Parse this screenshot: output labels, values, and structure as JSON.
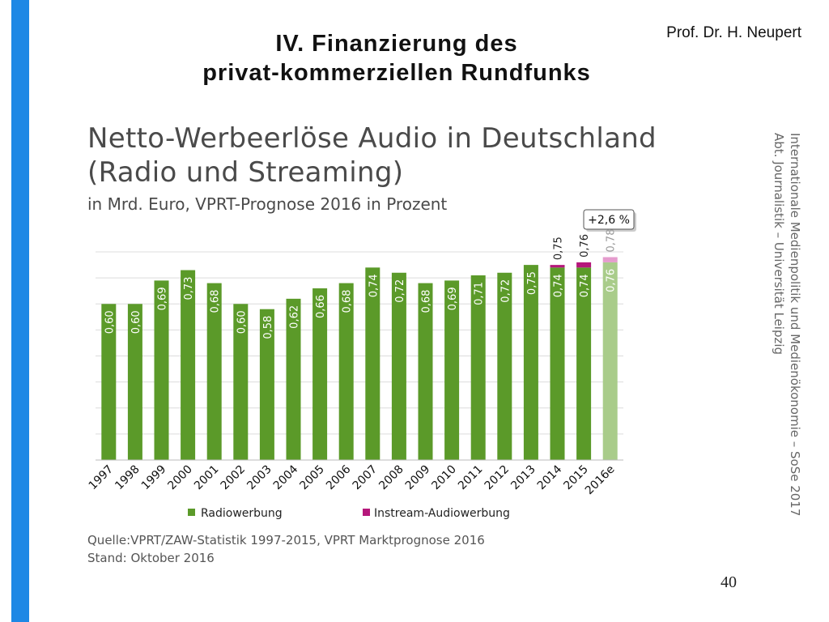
{
  "slide": {
    "title_line1": "IV. Finanzierung des",
    "title_line2": "privat-kommerziellen Rundfunks",
    "author": "Prof. Dr. H. Neupert",
    "side_line1": "Internationale Medienpolitik und Medienökonomie – SoSe 2017",
    "side_line2": "Abt. Journalistik – Universität Leipzig",
    "page_number": "40"
  },
  "colors": {
    "accent_bar": "#1e88e5",
    "radio": "#5b9a29",
    "radio_forecast": "#a9cc8a",
    "instream": "#b5177b",
    "instream_forecast": "#e59ccd"
  },
  "chart_data": {
    "type": "bar",
    "title_line1": "Netto-Werbeerlöse Audio in Deutschland",
    "title_line2": "(Radio und Streaming)",
    "subtitle": "in Mrd. Euro, VPRT-Prognose 2016 in Prozent",
    "categories": [
      "1997",
      "1998",
      "1999",
      "2000",
      "2001",
      "2002",
      "2003",
      "2004",
      "2005",
      "2006",
      "2007",
      "2008",
      "2009",
      "2010",
      "2011",
      "2012",
      "2013",
      "2014",
      "2015",
      "2016e"
    ],
    "series": [
      {
        "name": "Radiowerbung",
        "values": [
          0.6,
          0.6,
          0.69,
          0.73,
          0.68,
          0.6,
          0.58,
          0.62,
          0.66,
          0.68,
          0.74,
          0.72,
          0.68,
          0.69,
          0.71,
          0.72,
          0.75,
          0.74,
          0.74,
          0.76
        ]
      },
      {
        "name": "Instream-Audiowerbung",
        "values": [
          0,
          0,
          0,
          0,
          0,
          0,
          0,
          0,
          0,
          0,
          0,
          0,
          0,
          0,
          0,
          0,
          0,
          0.01,
          0.02,
          0.02
        ]
      }
    ],
    "value_labels": [
      "0,60",
      "0,60",
      "0,69",
      "0,73",
      "0,68",
      "0,60",
      "0,58",
      "0,62",
      "0,66",
      "0,68",
      "0,74",
      "0,72",
      "0,68",
      "0,69",
      "0,71",
      "0,72",
      "0,75",
      "0,74",
      "0,74",
      "0,76"
    ],
    "total_labels": [
      "",
      "",
      "",
      "",
      "",
      "",
      "",
      "",
      "",
      "",
      "",
      "",
      "",
      "",
      "",
      "",
      "",
      "0,75",
      "0,76",
      "0,78"
    ],
    "forecast_index": 19,
    "callout": "+2,6 %",
    "ylim": [
      0,
      0.85
    ],
    "grid": true,
    "legend_position": "bottom"
  },
  "source": {
    "line1": "Quelle:VPRT/ZAW-Statistik 1997-2015, VPRT Marktprognose 2016",
    "line2": "Stand:  Oktober 2016"
  }
}
